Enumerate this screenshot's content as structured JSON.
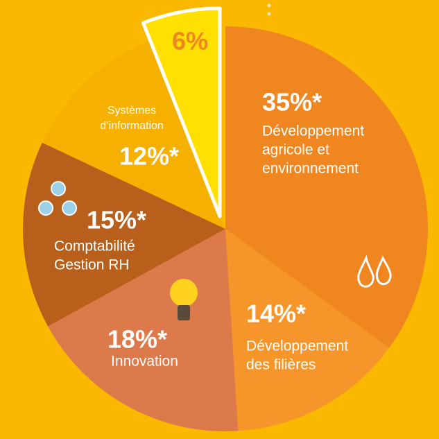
{
  "chart_data": {
    "type": "pie",
    "categories": [
      [
        "Développement",
        "agricole et",
        "environnement"
      ],
      [
        "Développement",
        "des filières"
      ],
      [
        "Innovation"
      ],
      [
        "Comptabilité",
        "Gestion RH"
      ],
      [
        "Systèmes",
        "d’information"
      ],
      null
    ],
    "values": [
      35,
      14,
      18,
      15,
      12,
      6
    ],
    "value_labels": [
      "35%*",
      "14%*",
      "18%*",
      "15%*",
      "12%*",
      "6%"
    ],
    "colors": [
      "#f0861f",
      "#f5952a",
      "#dc7a4b",
      "#b8601b",
      "#f5b000",
      "#ffe000"
    ]
  }
}
